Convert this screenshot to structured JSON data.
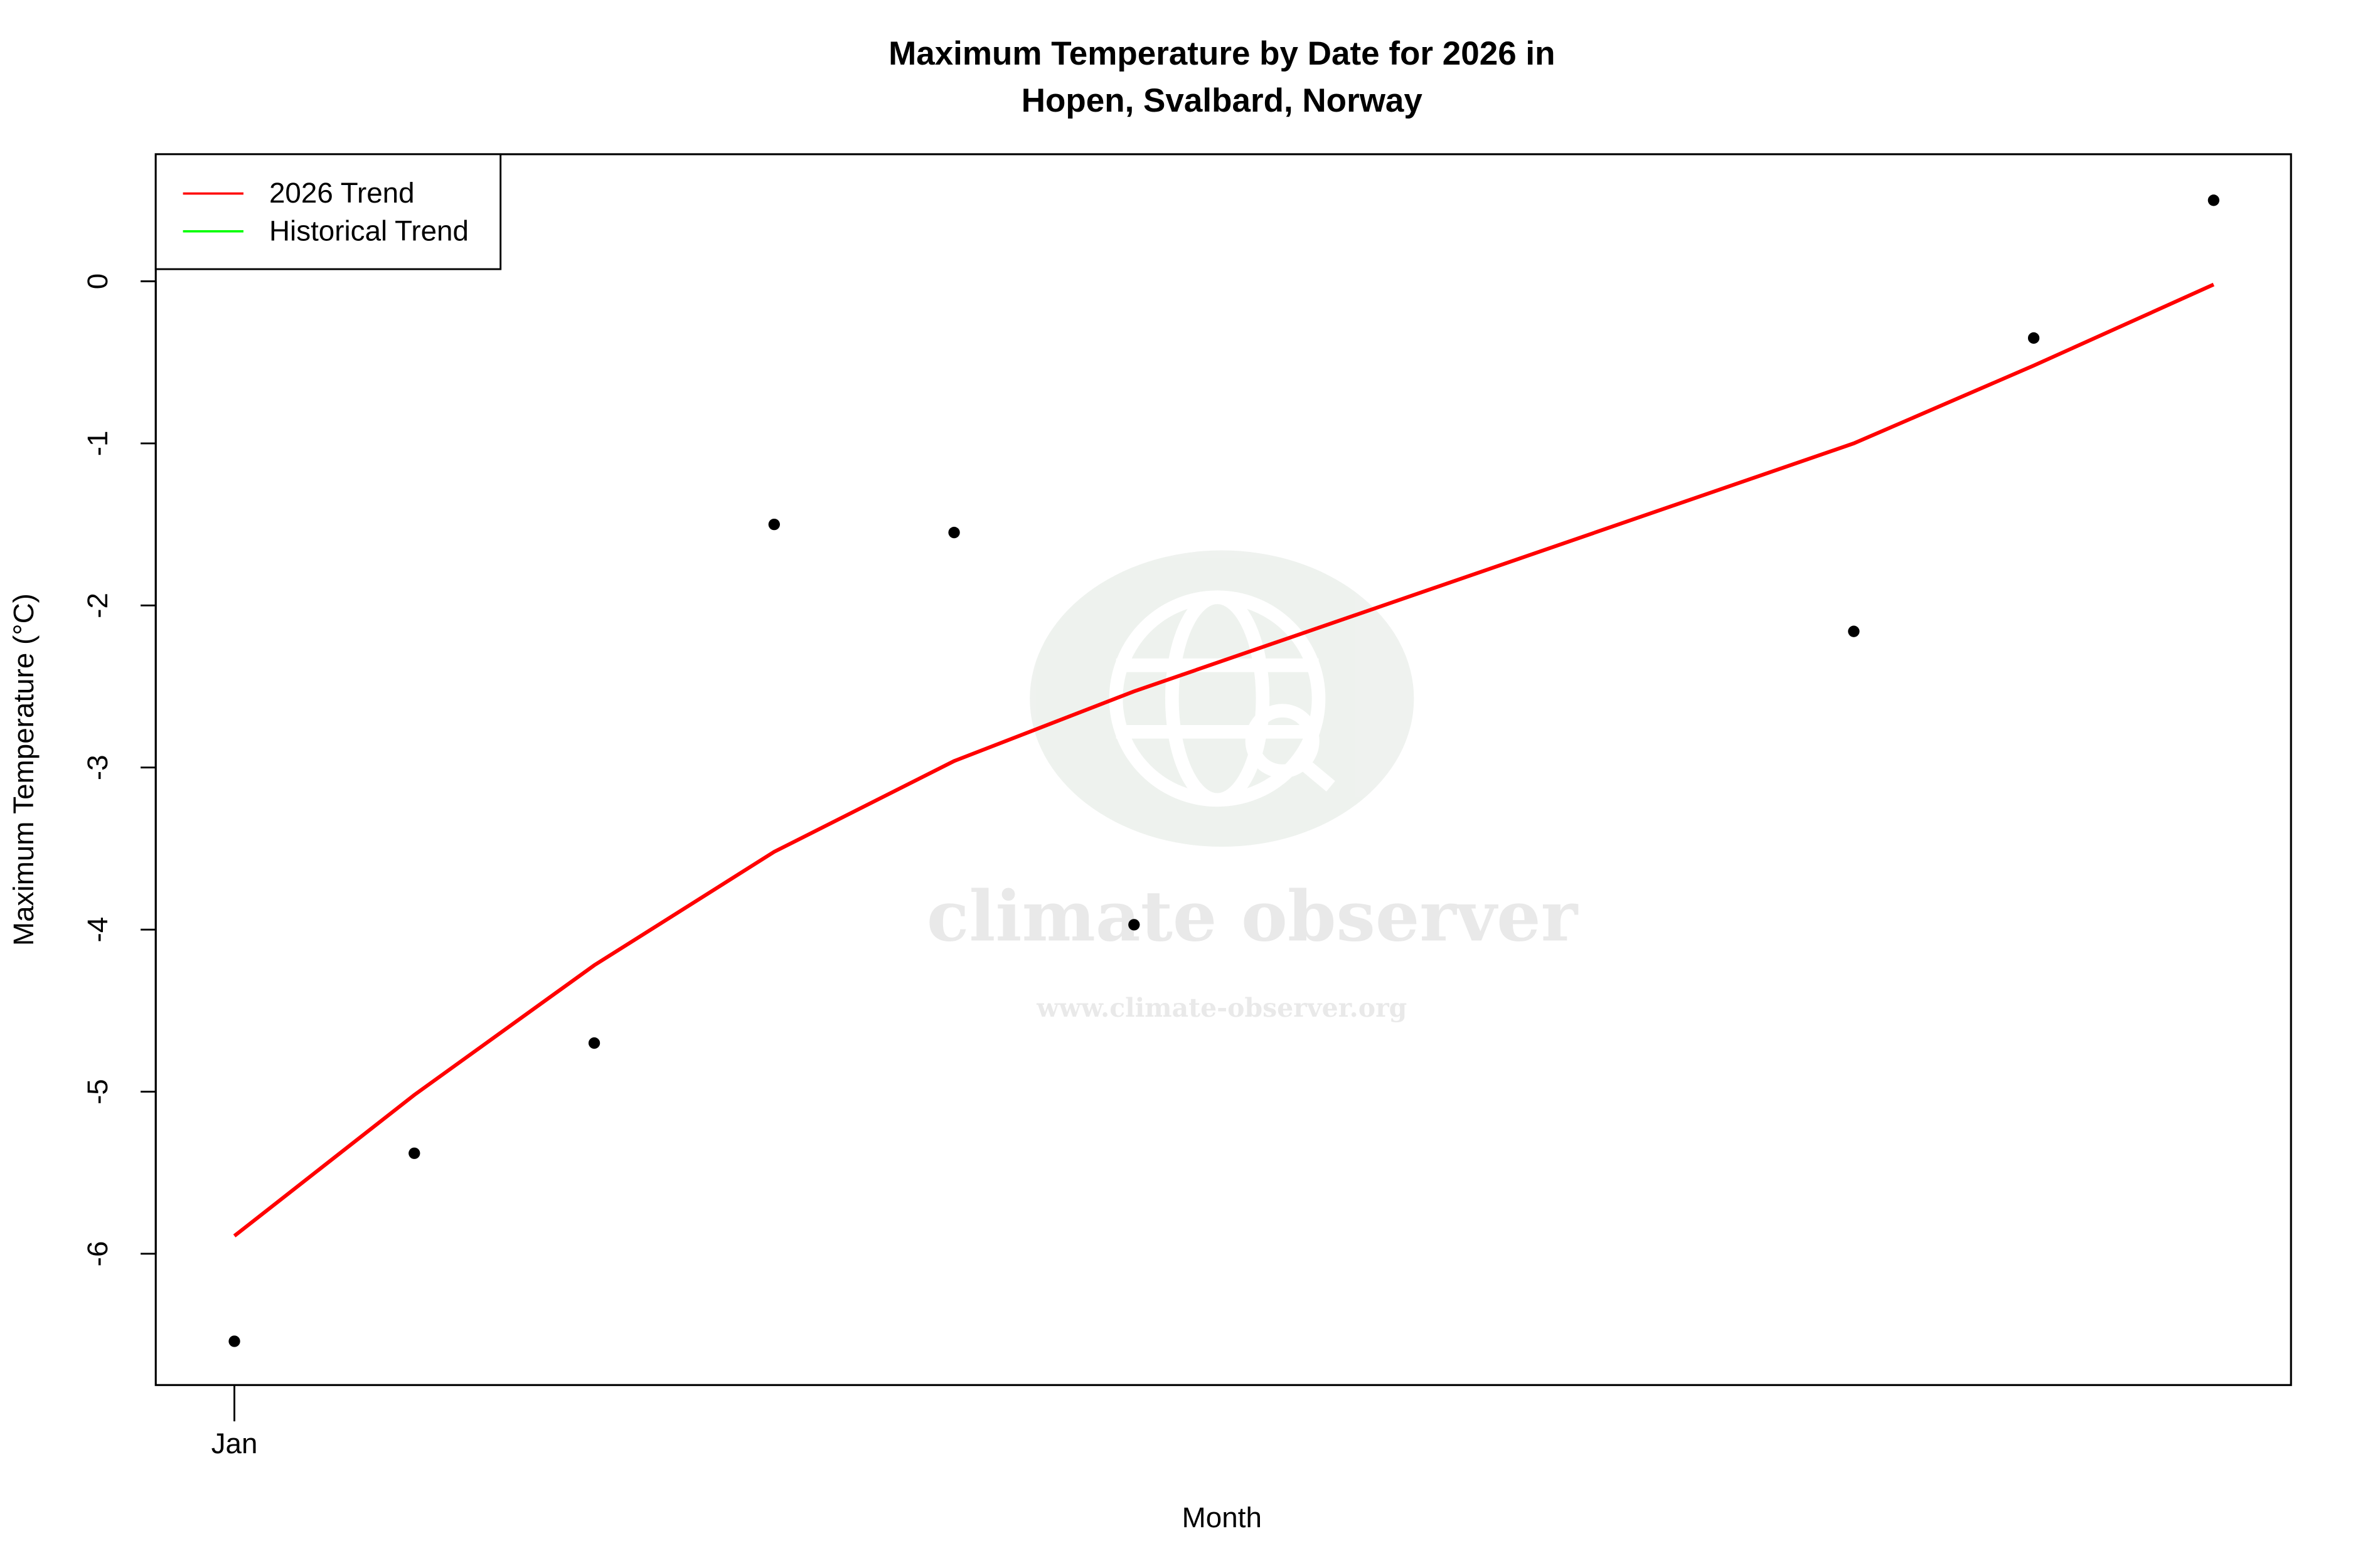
{
  "chart_data": {
    "type": "line",
    "title": [
      "Maximum Temperature by Date for 2026 in",
      "Hopen, Svalbard, Norway"
    ],
    "x_label": "Month",
    "y_label": "Maximum Temperature (°C)",
    "x": [
      0,
      1,
      2,
      3,
      4,
      5,
      9,
      10,
      11
    ],
    "xlim": [
      -0.437,
      11.43
    ],
    "xticks": [
      {
        "value": 0,
        "label": "Jan"
      }
    ],
    "ylim": [
      -6.81,
      0.784
    ],
    "yticks": [
      -6,
      -5,
      -4,
      -3,
      -2,
      -1,
      0
    ],
    "points": {
      "type": "scatter",
      "color": "#000000",
      "values": [
        -6.54,
        -5.38,
        -4.7,
        -1.5,
        -1.55,
        -3.97,
        -2.16,
        -0.35,
        0.5
      ]
    },
    "series": [
      {
        "name": "2026 Trend",
        "color": "#ff0000",
        "values": [
          -5.89,
          -5.02,
          -4.22,
          -3.52,
          -2.96,
          -2.53,
          -1.0,
          -0.52,
          -0.02
        ]
      },
      {
        "name": "Historical Trend",
        "color": "#00ff00",
        "values": [
          null,
          null,
          null,
          null,
          null,
          null,
          null,
          null,
          null
        ]
      }
    ],
    "legend_position": "top-left",
    "watermark": [
      "climate observer",
      "www.climate-observer.org"
    ]
  }
}
